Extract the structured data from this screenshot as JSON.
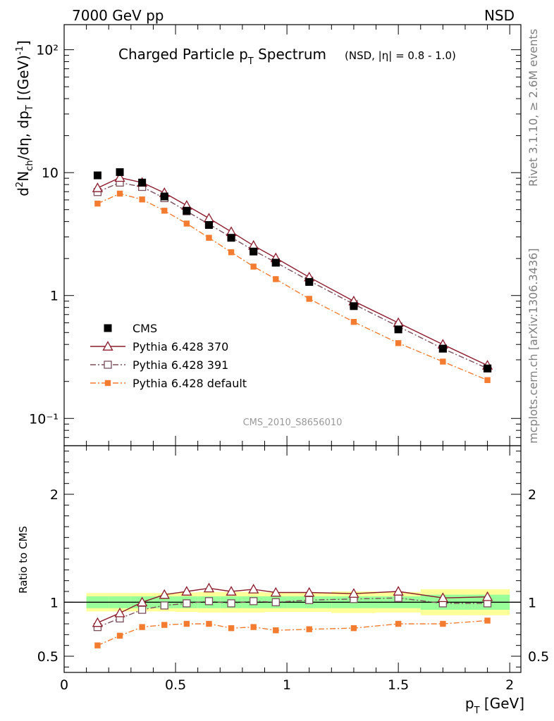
{
  "header": {
    "left": "7000 GeV pp",
    "right": "NSD"
  },
  "side_labels": {
    "rivet": "Rivet 3.1.10, ≥ 2.6M events",
    "mcplots": "mcplots.cern.ch [arXiv:1306.3436]"
  },
  "chart_data": [
    {
      "type": "scatter",
      "title_main": "Charged Particle p",
      "title_sub": "T",
      "title_tail": " Spectrum",
      "title_extra": "(NSD, |η| = 0.8 - 1.0)",
      "watermark": "CMS_2010_S8656010",
      "ylabel": "d²N_ch/dη, dp_T [(GeV)⁻¹]",
      "y_scale": "log",
      "ylim": [
        0.06,
        160
      ],
      "xlim": [
        0,
        2.05
      ],
      "y_tick_labels": [
        "10⁻¹",
        "1",
        "10",
        "10²"
      ],
      "legend_position": "bottom-left",
      "x": [
        0.15,
        0.25,
        0.35,
        0.45,
        0.55,
        0.65,
        0.75,
        0.85,
        0.95,
        1.1,
        1.3,
        1.5,
        1.7,
        1.9
      ],
      "series": [
        {
          "name": "CMS",
          "color": "#000000",
          "marker": "filled-square",
          "values": [
            9.5,
            10.1,
            8.3,
            6.4,
            4.9,
            3.75,
            2.95,
            2.28,
            1.85,
            1.29,
            0.82,
            0.53,
            0.37,
            0.255
          ]
        },
        {
          "name": "Pythia 6.428 370",
          "color": "#8b1a2c",
          "marker": "open-triangle",
          "line": "solid",
          "values": [
            7.5,
            9.1,
            8.3,
            6.85,
            5.4,
            4.25,
            3.3,
            2.55,
            2.02,
            1.41,
            0.9,
            0.6,
            0.4,
            0.27
          ]
        },
        {
          "name": "Pythia 6.428 391",
          "color": "#7a4f5a",
          "marker": "open-square",
          "line": "dash-dot",
          "values": [
            6.95,
            8.3,
            7.65,
            6.2,
            4.85,
            3.8,
            2.98,
            2.33,
            1.86,
            1.32,
            0.85,
            0.56,
            0.37,
            0.255
          ]
        },
        {
          "name": "Pythia 6.428 default",
          "color": "#f47c30",
          "marker": "filled-square-small",
          "line": "dash-dot",
          "values": [
            5.6,
            6.75,
            6.05,
            4.9,
            3.85,
            2.95,
            2.25,
            1.72,
            1.36,
            0.94,
            0.61,
            0.41,
            0.29,
            0.205
          ]
        }
      ]
    },
    {
      "type": "line",
      "ylabel": "Ratio to CMS",
      "xlabel_main": "p",
      "xlabel_sub": "T",
      "xlabel_unit": " [GeV]",
      "ylim": [
        0.35,
        2.45
      ],
      "xlim": [
        0,
        2.05
      ],
      "y_tick_labels": [
        "0.5",
        "1",
        "2"
      ],
      "x_tick_labels": [
        "0",
        "0.5",
        "1",
        "1.5",
        "2"
      ],
      "x": [
        0.15,
        0.25,
        0.35,
        0.45,
        0.55,
        0.65,
        0.75,
        0.85,
        0.95,
        1.1,
        1.3,
        1.5,
        1.7,
        1.9
      ],
      "reference_line": 1.0,
      "bands": {
        "edges": [
          0.1,
          0.2,
          0.3,
          0.4,
          0.5,
          0.6,
          0.7,
          0.8,
          0.9,
          1.0,
          1.2,
          1.4,
          1.6,
          1.8,
          2.0
        ],
        "inner_half_width": [
          0.055,
          0.055,
          0.055,
          0.055,
          0.055,
          0.055,
          0.055,
          0.055,
          0.055,
          0.055,
          0.055,
          0.055,
          0.07,
          0.07
        ],
        "outer_half_width": [
          0.085,
          0.085,
          0.085,
          0.085,
          0.09,
          0.095,
          0.095,
          0.095,
          0.09,
          0.09,
          0.1,
          0.095,
          0.12,
          0.12
        ],
        "inner_color": "#99ff99",
        "outer_color": "#ffff99"
      },
      "series": [
        {
          "name": "Pythia 6.428 370",
          "color": "#8b1a2c",
          "marker": "open-triangle",
          "line": "solid",
          "values": [
            0.81,
            0.9,
            1.0,
            1.07,
            1.1,
            1.13,
            1.1,
            1.12,
            1.09,
            1.09,
            1.08,
            1.1,
            1.04,
            1.05
          ]
        },
        {
          "name": "Pythia 6.428 391",
          "color": "#7a4f5a",
          "marker": "open-square",
          "line": "dash-dot",
          "values": [
            0.77,
            0.85,
            0.93,
            0.97,
            0.99,
            1.01,
            0.99,
            1.01,
            1.0,
            1.02,
            1.03,
            1.04,
            0.99,
            0.99
          ]
        },
        {
          "name": "Pythia 6.428 default",
          "color": "#f47c30",
          "marker": "filled-square-small",
          "line": "dash-dot",
          "values": [
            0.6,
            0.69,
            0.77,
            0.79,
            0.8,
            0.8,
            0.76,
            0.77,
            0.74,
            0.75,
            0.76,
            0.8,
            0.8,
            0.83
          ]
        }
      ]
    }
  ]
}
